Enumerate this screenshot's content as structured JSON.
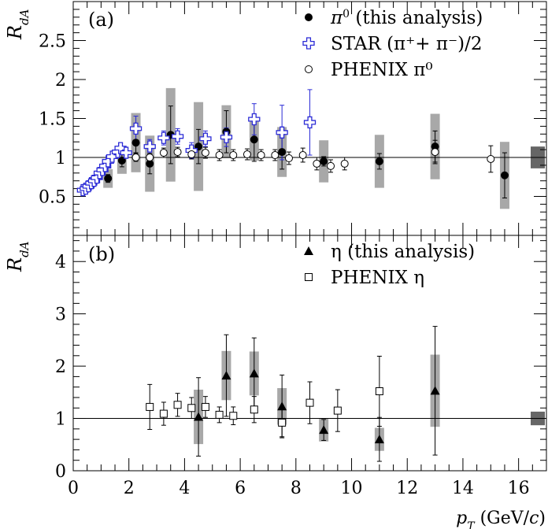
{
  "chart_data": [
    {
      "type": "scatter",
      "panel_label": "(a)",
      "ylabel": "R_{dA}",
      "xlim": [
        0,
        17
      ],
      "ylim": [
        0,
        3.0
      ],
      "yticks": [
        0.5,
        1,
        1.5,
        2,
        2.5
      ],
      "ytick_labels": [
        "0.5",
        "1",
        "1.5",
        "2",
        "2.5"
      ],
      "reference_line": 1,
      "norm_box": {
        "value": 1,
        "half_height": 0.14
      },
      "legend_position": "top-right",
      "series": [
        {
          "name": "π⁰ (this analysis)",
          "legend_main": "π",
          "legend_sup": "0",
          "legend_rest": " (this analysis)",
          "marker": "filled-circle",
          "color": "#000000",
          "x": [
            1.25,
            1.75,
            2.25,
            2.75,
            3.5,
            4.5,
            5.5,
            6.5,
            7.5,
            9.0,
            11.0,
            13.0,
            15.5
          ],
          "y": [
            0.73,
            0.96,
            1.19,
            0.92,
            1.29,
            1.14,
            1.33,
            1.23,
            1.07,
            0.95,
            0.95,
            1.14,
            0.77
          ],
          "stat_err": [
            0.05,
            0.08,
            0.13,
            0.13,
            0.37,
            0.22,
            0.27,
            0.28,
            0.22,
            0.06,
            0.1,
            0.2,
            0.29
          ],
          "sys_err": [
            0.12,
            0.17,
            0.38,
            0.36,
            0.6,
            0.57,
            0.34,
            0.27,
            0.32,
            0.27,
            0.34,
            0.42,
            0.43
          ]
        },
        {
          "name": "STAR (π⁺+ π⁻)/2",
          "legend_text": "STAR (π⁺+ π⁻)/2",
          "marker": "open-cross",
          "color": "#2b2bd6",
          "x": [
            0.35,
            0.45,
            0.55,
            0.65,
            0.75,
            0.85,
            0.95,
            1.05,
            1.15,
            1.25,
            1.4,
            1.6,
            1.7,
            1.9,
            2.25,
            2.75,
            3.25,
            3.75,
            4.25,
            4.75,
            5.5,
            6.5,
            7.5,
            8.5
          ],
          "y": [
            0.58,
            0.6,
            0.63,
            0.67,
            0.7,
            0.74,
            0.8,
            0.84,
            0.89,
            0.95,
            1.01,
            1.07,
            1.12,
            1.06,
            1.37,
            1.14,
            1.25,
            1.27,
            1.09,
            1.24,
            1.26,
            1.49,
            1.32,
            1.45
          ],
          "stat_err": [
            0.02,
            0.02,
            0.02,
            0.02,
            0.02,
            0.02,
            0.03,
            0.03,
            0.03,
            0.03,
            0.04,
            0.05,
            0.06,
            0.06,
            0.16,
            0.09,
            0.09,
            0.1,
            0.1,
            0.1,
            0.12,
            0.2,
            0.35,
            0.42
          ]
        },
        {
          "name": "PHENIX π⁰",
          "legend_text": "PHENIX π⁰",
          "marker": "open-circle",
          "color": "#000000",
          "x": [
            2.25,
            2.75,
            3.25,
            3.75,
            4.25,
            4.75,
            5.25,
            5.75,
            6.25,
            6.75,
            7.25,
            7.75,
            8.25,
            8.75,
            9.25,
            9.75,
            13.0,
            15.0
          ],
          "y": [
            1.0,
            1.0,
            1.06,
            1.07,
            1.04,
            1.06,
            1.03,
            1.03,
            1.04,
            1.03,
            1.03,
            0.99,
            1.03,
            0.92,
            0.89,
            0.92,
            1.07,
            0.98
          ],
          "stat_err": [
            0.05,
            0.05,
            0.06,
            0.06,
            0.06,
            0.07,
            0.07,
            0.07,
            0.07,
            0.07,
            0.07,
            0.08,
            0.09,
            0.08,
            0.08,
            0.08,
            0.15,
            0.17
          ]
        }
      ]
    },
    {
      "type": "scatter",
      "panel_label": "(b)",
      "ylabel": "R_{dA}",
      "xlabel_main": "p",
      "xlabel_sub": "T",
      "xlabel_rest": " (GeV/",
      "xlabel_c": "c",
      "xlabel_end": ")",
      "xlim": [
        0,
        17
      ],
      "ylim": [
        0,
        4.5
      ],
      "xticks": [
        0,
        2,
        4,
        6,
        8,
        10,
        12,
        14,
        16
      ],
      "xtick_labels": [
        "0",
        "2",
        "4",
        "6",
        "8",
        "10",
        "12",
        "14",
        "16"
      ],
      "yticks": [
        0,
        1,
        2,
        3,
        4
      ],
      "ytick_labels": [
        "0",
        "1",
        "2",
        "3",
        "4"
      ],
      "reference_line": 1,
      "norm_box": {
        "value": 1,
        "half_height": 0.13
      },
      "legend_position": "top-right",
      "series": [
        {
          "name": "η (this analysis)",
          "legend_text": "η (this analysis)",
          "marker": "filled-triangle",
          "color": "#000000",
          "x": [
            4.5,
            5.5,
            6.5,
            7.5,
            9.0,
            11.0,
            13.0
          ],
          "y": [
            1.03,
            1.82,
            1.86,
            1.23,
            0.78,
            0.6,
            1.53
          ],
          "stat_err": [
            0.75,
            0.78,
            0.68,
            0.6,
            0.2,
            0.42,
            1.23
          ],
          "sys_err": [
            0.52,
            0.47,
            0.42,
            0.35,
            0.22,
            0.22,
            0.69
          ]
        },
        {
          "name": "PHENIX η",
          "legend_text": "PHENIX η",
          "marker": "open-square",
          "color": "#000000",
          "x": [
            2.75,
            3.25,
            3.75,
            4.25,
            4.75,
            5.25,
            5.75,
            6.5,
            7.5,
            8.5,
            9.5,
            11.0
          ],
          "y": [
            1.22,
            1.09,
            1.26,
            1.2,
            1.22,
            1.07,
            1.05,
            1.17,
            0.92,
            1.3,
            1.15,
            1.52
          ],
          "stat_err": [
            0.43,
            0.22,
            0.22,
            0.2,
            0.2,
            0.15,
            0.17,
            0.25,
            0.27,
            0.4,
            0.4,
            0.67
          ]
        }
      ]
    }
  ]
}
